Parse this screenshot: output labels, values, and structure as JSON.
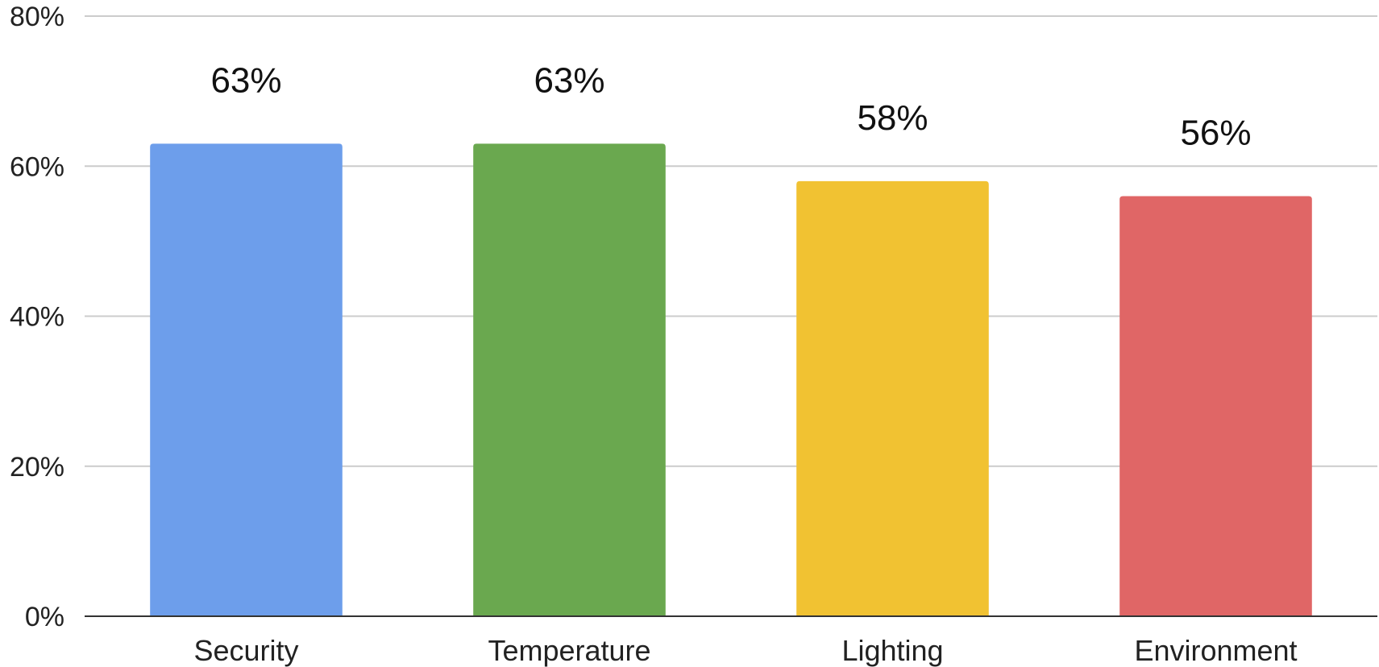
{
  "chart_data": {
    "type": "bar",
    "title": "",
    "xlabel": "",
    "ylabel": "",
    "categories": [
      "Security",
      "Temperature",
      "Lighting",
      "Environment"
    ],
    "values": [
      63,
      63,
      58,
      56
    ],
    "value_labels": [
      "63%",
      "63%",
      "58%",
      "56%"
    ],
    "colors": [
      "#6d9eeb",
      "#6aa84f",
      "#f1c232",
      "#e06666"
    ],
    "ylim": [
      0,
      80
    ],
    "yticks": [
      0,
      20,
      40,
      60,
      80
    ],
    "ytick_labels": [
      "0%",
      "20%",
      "40%",
      "60%",
      "80%"
    ],
    "grid": true,
    "legend": "none"
  }
}
